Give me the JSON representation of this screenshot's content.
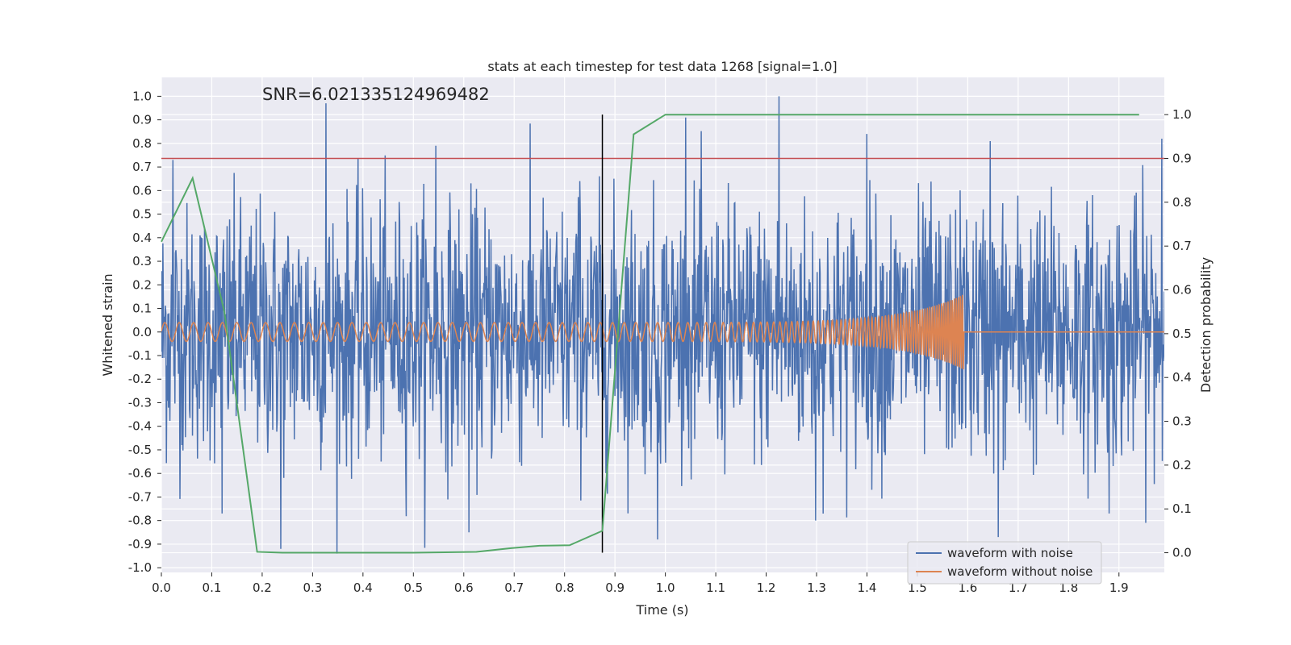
{
  "chart_data": {
    "type": "line",
    "title": "stats at each timestep for test data 1268 [signal=1.0]",
    "xlabel": "Time (s)",
    "ylabel": "Whitened strain",
    "y2label": "Detection probability",
    "xlim": [
      0.0,
      1.99
    ],
    "ylim": [
      -1.02,
      1.08
    ],
    "y2lim": [
      -0.045,
      1.085
    ],
    "x_ticks": [
      0.0,
      0.1,
      0.2,
      0.3,
      0.4,
      0.5,
      0.6,
      0.7,
      0.8,
      0.9,
      1.0,
      1.1,
      1.2,
      1.3,
      1.4,
      1.5,
      1.6,
      1.7,
      1.8,
      1.9
    ],
    "y_ticks": [
      -1.0,
      -0.9,
      -0.8,
      -0.7,
      -0.6,
      -0.5,
      -0.4,
      -0.3,
      -0.2,
      -0.1,
      0.0,
      0.1,
      0.2,
      0.3,
      0.4,
      0.5,
      0.6,
      0.7,
      0.8,
      0.9,
      1.0
    ],
    "y2_ticks": [
      0.0,
      0.1,
      0.2,
      0.3,
      0.4,
      0.5,
      0.6,
      0.7,
      0.8,
      0.9,
      1.0
    ],
    "grid": true,
    "legend_position": "lower-right",
    "annotation": "SNR=6.021335124969482",
    "threshold": {
      "y2": 0.9,
      "color": "#c44e52"
    },
    "marker_line": {
      "x": 0.875,
      "y2_range": [
        0.0,
        1.0
      ],
      "color": "#000000"
    },
    "noise_series": {
      "name": "waveform with noise",
      "color": "#4c72b0",
      "x_range": [
        0.0,
        1.99
      ],
      "samples": 2000,
      "std": 0.27,
      "peaks": [
        {
          "x": 0.023,
          "y": 0.73
        },
        {
          "x": 0.12,
          "y": 0.8
        },
        {
          "x": 0.327,
          "y": 0.97
        },
        {
          "x": 0.545,
          "y": 0.79
        },
        {
          "x": 0.83,
          "y": 0.64
        },
        {
          "x": 1.04,
          "y": 0.91
        },
        {
          "x": 1.225,
          "y": 1.0
        },
        {
          "x": 1.4,
          "y": 0.84
        },
        {
          "x": 1.645,
          "y": 0.81
        },
        {
          "x": 1.985,
          "y": 0.82
        },
        {
          "x": 0.237,
          "y": -0.92
        },
        {
          "x": 0.61,
          "y": -0.85
        },
        {
          "x": 0.985,
          "y": -0.88
        },
        {
          "x": 1.298,
          "y": -0.8
        },
        {
          "x": 1.66,
          "y": -0.87
        },
        {
          "x": 0.12,
          "y": -0.77
        },
        {
          "x": 1.88,
          "y": -0.77
        }
      ]
    },
    "clean_series": {
      "name": "waveform without noise",
      "color": "#dd8452",
      "amplitude_start": 0.04,
      "amplitude_end": 0.16,
      "freq_start_hz": 35,
      "freq_end_hz": 260,
      "chirp_end_x": 1.592
    },
    "probability_series": {
      "name": "Detection probability",
      "color": "#55a868",
      "points": [
        [
          0.0,
          0.71
        ],
        [
          0.062,
          0.855
        ],
        [
          0.125,
          0.55
        ],
        [
          0.19,
          0.002
        ],
        [
          0.24,
          0.0
        ],
        [
          0.5,
          0.0
        ],
        [
          0.625,
          0.002
        ],
        [
          0.69,
          0.01
        ],
        [
          0.75,
          0.016
        ],
        [
          0.81,
          0.017
        ],
        [
          0.875,
          0.05
        ],
        [
          0.937,
          0.955
        ],
        [
          1.0,
          1.0
        ],
        [
          1.94,
          1.0
        ]
      ]
    }
  }
}
